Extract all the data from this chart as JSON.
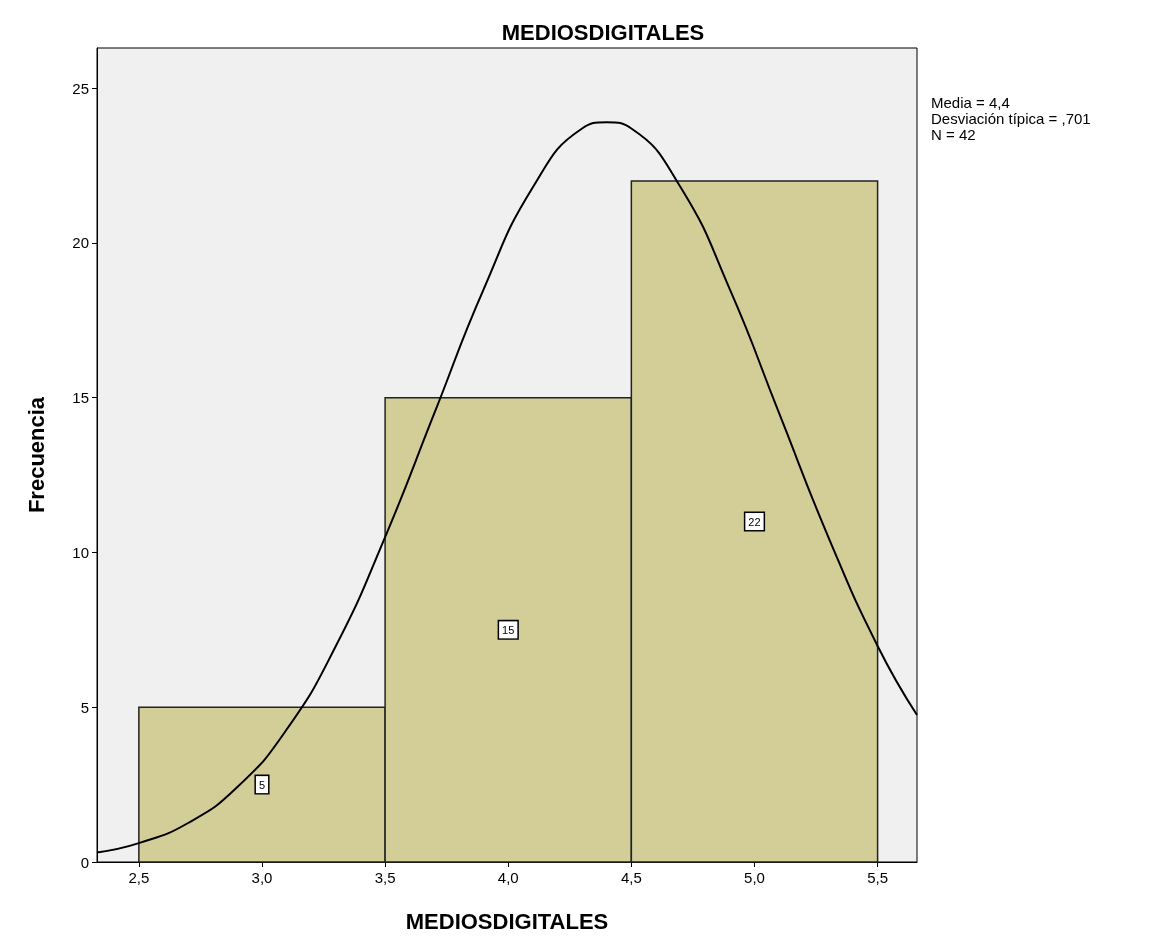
{
  "chart_data": {
    "type": "histogram",
    "title": "MEDIOSDIGITALES",
    "xlabel": "MEDIOSDIGITALES",
    "ylabel": "Frecuencia",
    "bins": [
      2.5,
      3.5,
      4.5,
      5.5
    ],
    "series": [
      {
        "color": "#d3ce98",
        "values": [
          5,
          15,
          22
        ],
        "data_labels": true
      },
      {
        "type": "line",
        "color": "#000000",
        "marker": "none",
        "x": [
          2.33,
          2.5,
          2.7,
          2.9,
          3.1,
          3.3,
          3.5,
          3.7,
          3.9,
          4.1,
          4.3,
          4.4,
          4.5,
          4.7,
          4.9,
          5.1,
          5.3,
          5.5,
          5.66
        ],
        "values": [
          0.31,
          0.61,
          1.26,
          2.42,
          4.28,
          6.98,
          10.5,
          14.5,
          18.5,
          21.8,
          23.7,
          23.9,
          23.7,
          21.8,
          18.5,
          14.5,
          10.5,
          6.98,
          4.75
        ]
      }
    ],
    "grid": false,
    "xlim": [
      2.33,
      5.66
    ],
    "xticks": [
      {
        "value": 2.5,
        "label": "2,5"
      },
      {
        "value": 3,
        "label": "3,0"
      },
      {
        "value": 3.5,
        "label": "3,5"
      },
      {
        "value": 4,
        "label": "4,0"
      },
      {
        "value": 4.5,
        "label": "4,5"
      },
      {
        "value": 5,
        "label": "5,0"
      },
      {
        "value": 5.5,
        "label": "5,5"
      }
    ],
    "ylim": [
      0,
      26.3
    ],
    "yticks": [
      0,
      5,
      10,
      15,
      20,
      25
    ],
    "annotations": [
      "Media = 4,4",
      "Desviación típica = ,701",
      "N = 42"
    ]
  }
}
